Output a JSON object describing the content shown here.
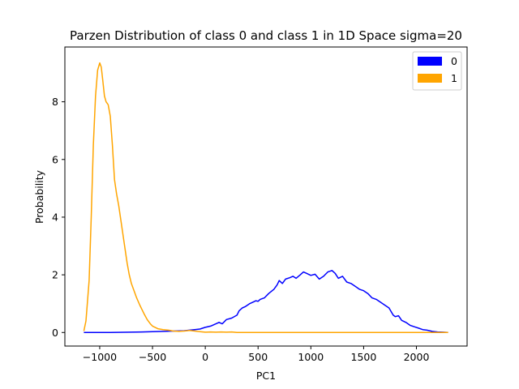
{
  "chart_data": {
    "type": "line",
    "title": "Parzen Distribution of class 0 and class 1 in 1D Space sigma=20",
    "xlabel": "PC1",
    "ylabel": "Probability",
    "xlim": [
      -1330,
      2480
    ],
    "ylim": [
      -0.47,
      9.9
    ],
    "xticks": [
      -1000,
      -500,
      0,
      500,
      1000,
      1500,
      2000
    ],
    "xtick_labels": [
      "−1000",
      "−500",
      "0",
      "500",
      "1000",
      "1500",
      "2000"
    ],
    "yticks": [
      0,
      2,
      4,
      6,
      8
    ],
    "ytick_labels": [
      "0",
      "2",
      "4",
      "6",
      "8"
    ],
    "grid": false,
    "legend": {
      "position": "top-right"
    },
    "series": [
      {
        "name": "0",
        "color": "#0000ff",
        "x": [
          -1150,
          -900,
          -600,
          -500,
          -400,
          -300,
          -200,
          -150,
          -100,
          -50,
          0,
          50,
          100,
          130,
          160,
          200,
          250,
          300,
          320,
          350,
          380,
          420,
          450,
          480,
          500,
          520,
          560,
          600,
          650,
          680,
          700,
          730,
          760,
          800,
          830,
          860,
          900,
          930,
          960,
          1000,
          1040,
          1080,
          1120,
          1160,
          1200,
          1230,
          1260,
          1300,
          1340,
          1380,
          1420,
          1460,
          1500,
          1540,
          1580,
          1620,
          1660,
          1700,
          1740,
          1780,
          1800,
          1830,
          1860,
          1900,
          1940,
          1980,
          2020,
          2060,
          2100,
          2150,
          2200,
          2250,
          2300
        ],
        "values": [
          0,
          0,
          0.02,
          0.03,
          0.04,
          0.05,
          0.06,
          0.08,
          0.1,
          0.12,
          0.18,
          0.22,
          0.3,
          0.35,
          0.3,
          0.45,
          0.5,
          0.6,
          0.75,
          0.85,
          0.9,
          1.0,
          1.05,
          1.1,
          1.08,
          1.15,
          1.2,
          1.35,
          1.5,
          1.65,
          1.8,
          1.7,
          1.85,
          1.9,
          1.95,
          1.88,
          2.0,
          2.1,
          2.05,
          1.98,
          2.02,
          1.85,
          1.95,
          2.1,
          2.15,
          2.05,
          1.88,
          1.95,
          1.75,
          1.7,
          1.6,
          1.5,
          1.45,
          1.35,
          1.2,
          1.15,
          1.05,
          0.95,
          0.85,
          0.6,
          0.55,
          0.58,
          0.42,
          0.35,
          0.25,
          0.2,
          0.15,
          0.1,
          0.08,
          0.04,
          0.02,
          0.01,
          0
        ]
      },
      {
        "name": "1",
        "color": "#ffa500",
        "x": [
          -1150,
          -1130,
          -1100,
          -1080,
          -1060,
          -1040,
          -1020,
          -1000,
          -985,
          -970,
          -955,
          -940,
          -920,
          -900,
          -880,
          -860,
          -840,
          -820,
          -800,
          -780,
          -760,
          -740,
          -720,
          -700,
          -680,
          -650,
          -620,
          -580,
          -550,
          -520,
          -500,
          -450,
          -400,
          -350,
          -300,
          -250,
          -200,
          -150,
          -100,
          -50,
          0,
          50,
          100,
          150,
          200,
          250,
          300,
          400,
          600,
          1000,
          1500,
          2000,
          2300
        ],
        "values": [
          0.05,
          0.4,
          1.8,
          4.0,
          6.5,
          8.2,
          9.1,
          9.35,
          9.2,
          8.7,
          8.2,
          8.0,
          7.9,
          7.5,
          6.5,
          5.3,
          4.8,
          4.4,
          3.9,
          3.4,
          2.9,
          2.4,
          2.0,
          1.7,
          1.5,
          1.2,
          0.95,
          0.65,
          0.45,
          0.3,
          0.22,
          0.13,
          0.1,
          0.08,
          0.05,
          0.04,
          0.05,
          0.07,
          0.05,
          0.03,
          0.01,
          0.02,
          0.01,
          0.02,
          0.01,
          0.02,
          0,
          0,
          0,
          0,
          0,
          0,
          0
        ]
      }
    ]
  }
}
